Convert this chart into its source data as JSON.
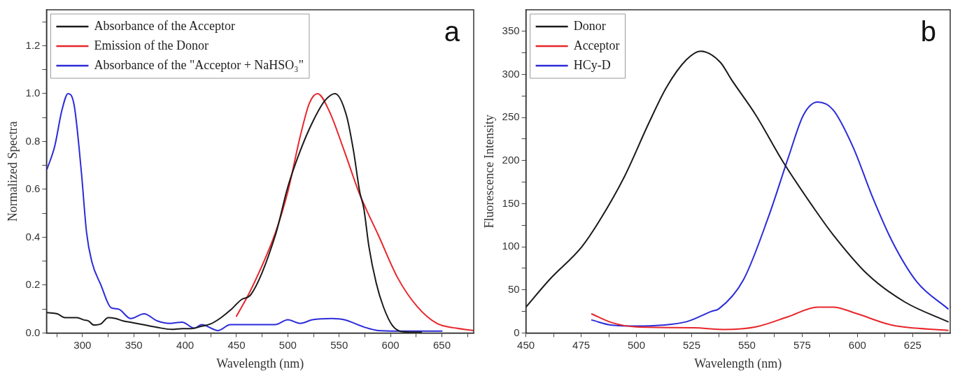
{
  "chart_data": [
    {
      "type": "line",
      "xlabel": "Wavelength (nm)",
      "ylabel": "Normalized Spectra",
      "annotations": [
        "a"
      ],
      "legend": "top left",
      "grid": false,
      "marker": "none",
      "line_style": "solid",
      "xlim": [
        265,
        681
      ],
      "ylim": [
        0,
        1.35
      ],
      "xticks": [
        {
          "value": 275,
          "label": null
        },
        300,
        {
          "value": 325,
          "label": null
        },
        350,
        {
          "value": 375,
          "label": null
        },
        400,
        {
          "value": 425,
          "label": null
        },
        450,
        {
          "value": 475,
          "label": null
        },
        500,
        {
          "value": 525,
          "label": null
        },
        550,
        {
          "value": 575,
          "label": null
        },
        600,
        {
          "value": 625,
          "label": null
        },
        650,
        {
          "value": 675,
          "label": null
        }
      ],
      "yticks": [
        {
          "value": 0,
          "label": "0.0"
        },
        {
          "value": 0.1,
          "label": null
        },
        0.2,
        {
          "value": 0.3,
          "label": null
        },
        0.4,
        {
          "value": 0.5,
          "label": null
        },
        0.6,
        {
          "value": 0.7,
          "label": null
        },
        0.8,
        {
          "value": 0.9,
          "label": null
        },
        {
          "value": 1,
          "label": "1.0"
        },
        {
          "value": 1.1,
          "label": null
        },
        1.2,
        {
          "value": 1.3,
          "label": null
        }
      ],
      "series": [
        {
          "name": "Absorbance of the Acceptor",
          "color": "#1a1a1a",
          "x": [
            265.6,
            275.5,
            283,
            294.5,
            301.7,
            306,
            311,
            318,
            325,
            332.5,
            339.7,
            349,
            361,
            373,
            387,
            397,
            406,
            416,
            425,
            435,
            444,
            455,
            464,
            488,
            500,
            512,
            524,
            536,
            546,
            557,
            564,
            570,
            574,
            579,
            586,
            593,
            602,
            612,
            630
          ],
          "values": [
            0.085,
            0.08,
            0.064,
            0.064,
            0.054,
            0.05,
            0.033,
            0.038,
            0.064,
            0.06,
            0.05,
            0.043,
            0.033,
            0.023,
            0.015,
            0.018,
            0.018,
            0.028,
            0.038,
            0.064,
            0.095,
            0.14,
            0.16,
            0.41,
            0.61,
            0.76,
            0.88,
            0.97,
            1.0,
            0.91,
            0.76,
            0.59,
            0.52,
            0.36,
            0.21,
            0.11,
            0.03,
            0.005,
            0.003
          ]
        },
        {
          "name": "Emission of the Donor",
          "color": "#e8262b",
          "x": [
            450,
            464,
            488,
            500,
            512,
            521,
            529,
            540,
            555,
            569,
            576,
            588,
            607,
            626,
            645,
            664,
            681
          ],
          "values": [
            0.07,
            0.18,
            0.42,
            0.59,
            0.82,
            0.96,
            1.0,
            0.93,
            0.76,
            0.59,
            0.52,
            0.41,
            0.23,
            0.11,
            0.04,
            0.02,
            0.01
          ]
        },
        {
          "name": "Absorbance of the \"Acceptor + NaHSO₃\"",
          "color": "#2b2bd9",
          "x": [
            265.6,
            273,
            280,
            286,
            292,
            299,
            304,
            309,
            318,
            328,
            335,
            347,
            360,
            373,
            385,
            397,
            409,
            416,
            432,
            444,
            488,
            500,
            512,
            524,
            543,
            555,
            574,
            588,
            607,
            650
          ],
          "values": [
            0.685,
            0.78,
            0.93,
            1.0,
            0.95,
            0.67,
            0.42,
            0.3,
            0.2,
            0.105,
            0.1,
            0.06,
            0.08,
            0.05,
            0.04,
            0.045,
            0.02,
            0.035,
            0.01,
            0.035,
            0.035,
            0.055,
            0.04,
            0.055,
            0.06,
            0.055,
            0.025,
            0.01,
            0.008,
            0.008
          ]
        }
      ]
    },
    {
      "type": "line",
      "xlabel": "Wavelength (nm)",
      "ylabel": "Fluorescence Intensity",
      "annotations": [
        "b"
      ],
      "legend": "top left",
      "grid": false,
      "marker": "none",
      "line_style": "solid",
      "xlim": [
        450,
        642
      ],
      "ylim": [
        0,
        375
      ],
      "xticks": [
        450,
        {
          "value": 462.5,
          "label": null
        },
        475,
        {
          "value": 487.5,
          "label": null
        },
        500,
        {
          "value": 512.5,
          "label": null
        },
        525,
        {
          "value": 537.5,
          "label": null
        },
        550,
        {
          "value": 562.5,
          "label": null
        },
        575,
        {
          "value": 587.5,
          "label": null
        },
        600,
        {
          "value": 612.5,
          "label": null
        },
        625,
        {
          "value": 637.5,
          "label": null
        }
      ],
      "yticks": [
        0,
        {
          "value": 25,
          "label": null
        },
        50,
        {
          "value": 75,
          "label": null
        },
        100,
        {
          "value": 125,
          "label": null
        },
        150,
        {
          "value": 175,
          "label": null
        },
        200,
        {
          "value": 225,
          "label": null
        },
        250,
        {
          "value": 275,
          "label": null
        },
        300,
        {
          "value": 325,
          "label": null
        },
        350
      ],
      "series": [
        {
          "name": "Donor",
          "color": "#1a1a1a",
          "x": [
            450,
            460.7,
            475.3,
            483,
            494.5,
            505.7,
            513.6,
            522.6,
            529,
            538,
            543,
            554,
            566.5,
            580,
            589,
            604.6,
            621.4,
            641
          ],
          "values": [
            30,
            62,
            100,
            129,
            181,
            244,
            285,
            317,
            327,
            314,
            294,
            253,
            198,
            146,
            114,
            68,
            36,
            13
          ]
        },
        {
          "name": "Acceptor",
          "color": "#e8262b",
          "x": [
            479.8,
            488.9,
            500,
            526,
            539.5,
            554,
            568.8,
            582,
            589,
            599,
            615.8,
            641
          ],
          "values": [
            22,
            12,
            7,
            6,
            4,
            7,
            19,
            30,
            30,
            23,
            9,
            3
          ]
        },
        {
          "name": "HCy-D",
          "color": "#2b2bd9",
          "x": [
            479.8,
            488.9,
            500,
            511.4,
            522.6,
            533.9,
            537.3,
            548.5,
            559.8,
            568.8,
            575.6,
            582,
            589,
            598,
            606.8,
            615.8,
            627,
            641
          ],
          "values": [
            15,
            9,
            8,
            9,
            13,
            25,
            28,
            62,
            135,
            204,
            253,
            268,
            259,
            216,
            158,
            106,
            59,
            28
          ]
        }
      ]
    }
  ]
}
